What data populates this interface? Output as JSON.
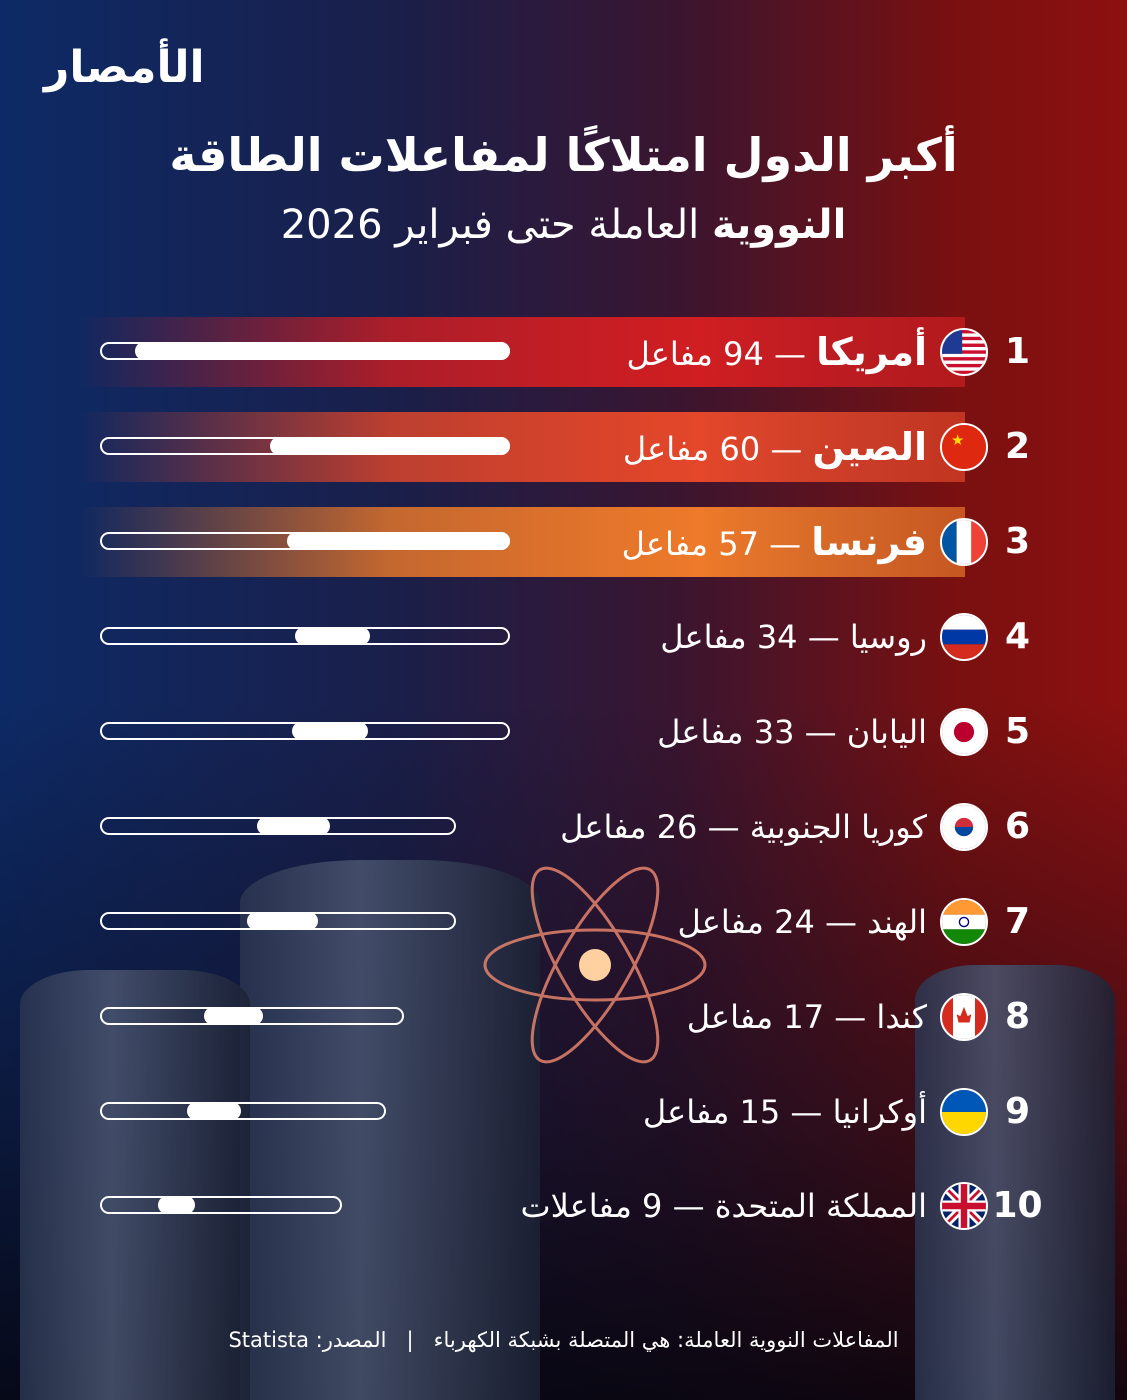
{
  "brand": {
    "logo": "الأمصار"
  },
  "title": {
    "line1": "أكبر الدول امتلاكًا لمفاعلات الطاقة",
    "line2_bold": "النووية",
    "line2_rest": "العاملة حتى فبراير 2026"
  },
  "colors": {
    "rank1": "#d01e22",
    "rank2": "#e4472a",
    "rank3": "#ee7a2a"
  },
  "chart_data": {
    "type": "bar",
    "categories": [
      "أمريكا",
      "الصين",
      "فرنسا",
      "روسيا",
      "اليابان",
      "كوريا الجنوبية",
      "الهند",
      "كندا",
      "أوكرانيا",
      "المملكة المتحدة"
    ],
    "values": [
      94,
      60,
      57,
      34,
      33,
      26,
      24,
      17,
      15,
      9
    ],
    "value_labels": [
      "94 مفاعل",
      "60 مفاعل",
      "57 مفاعل",
      "34 مفاعل",
      "33 مفاعل",
      "26 مفاعل",
      "24 مفاعل",
      "17 مفاعل",
      "15 مفاعل",
      "9 مفاعلات"
    ],
    "ranks": [
      "1",
      "2",
      "3",
      "4",
      "5",
      "6",
      "7",
      "8",
      "9",
      "10"
    ],
    "flags": [
      "us",
      "cn",
      "fr",
      "ru",
      "jp",
      "kr",
      "in",
      "ca",
      "ua",
      "gb"
    ],
    "separator": "—"
  },
  "footer": {
    "note": "المفاعلات النووية العاملة: هي المتصلة بشبكة الكهرباء",
    "divider": "|",
    "source": "المصدر: Statista"
  }
}
